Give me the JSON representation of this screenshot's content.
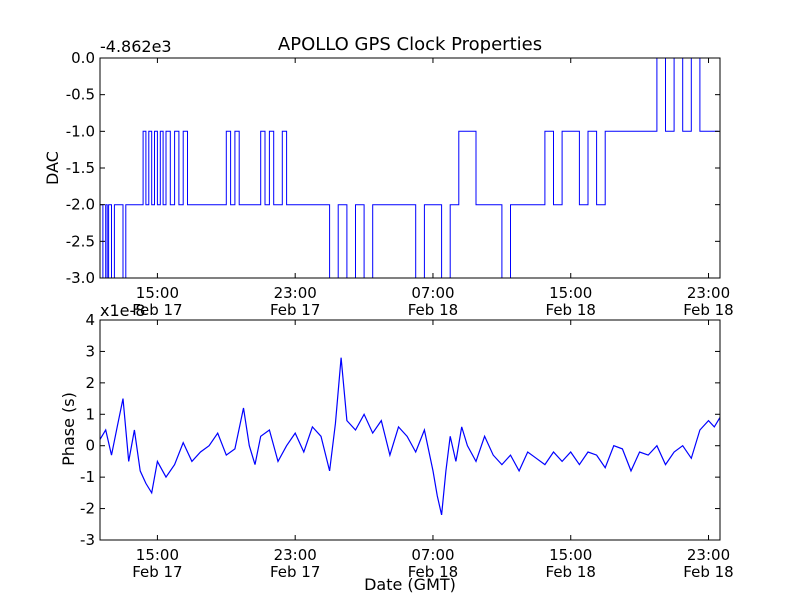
{
  "figure": {
    "title": "APOLLO GPS Clock Properties",
    "xlabel": "Date (GMT)"
  },
  "chart_data": [
    {
      "type": "line",
      "title": "APOLLO GPS Clock Properties",
      "ylabel": "DAC",
      "offset_label": "-4.862e3",
      "xlabel": "",
      "xlim": [
        "2014-02-17T11:40",
        "2014-02-18T23:40"
      ],
      "ylim": [
        -3.0,
        0.0
      ],
      "yticks": [
        {
          "value": 0.0,
          "label": "0.0"
        },
        {
          "value": -0.5,
          "label": "-0.5"
        },
        {
          "value": -1.0,
          "label": "-1.0"
        },
        {
          "value": -1.5,
          "label": "-1.5"
        },
        {
          "value": -2.0,
          "label": "-2.0"
        },
        {
          "value": -2.5,
          "label": "-2.5"
        },
        {
          "value": -3.0,
          "label": "-3.0"
        }
      ],
      "xticks": [
        {
          "value": "2014-02-17T15:00",
          "label": "15:00",
          "date": "Feb 17"
        },
        {
          "value": "2014-02-17T23:00",
          "label": "23:00",
          "date": "Feb 17"
        },
        {
          "value": "2014-02-18T07:00",
          "label": "07:00",
          "date": "Feb 18"
        },
        {
          "value": "2014-02-18T15:00",
          "label": "15:00",
          "date": "Feb 18"
        },
        {
          "value": "2014-02-18T23:00",
          "label": "23:00",
          "date": "Feb 18"
        }
      ],
      "grid": false,
      "colors": {
        "line": "#0000ff"
      },
      "series": [
        {
          "x": [
            "2014-02-17T11:40",
            "2014-02-17T11:50",
            "2014-02-17T12:00",
            "2014-02-17T12:05",
            "2014-02-17T12:10",
            "2014-02-17T12:20",
            "2014-02-17T12:30",
            "2014-02-17T12:40",
            "2014-02-17T12:50",
            "2014-02-17T13:00",
            "2014-02-17T13:10",
            "2014-02-17T13:20",
            "2014-02-17T13:30",
            "2014-02-17T13:45",
            "2014-02-17T14:00",
            "2014-02-17T14:10",
            "2014-02-17T14:20",
            "2014-02-17T14:30",
            "2014-02-17T14:40",
            "2014-02-17T14:50",
            "2014-02-17T15:00",
            "2014-02-17T15:10",
            "2014-02-17T15:20",
            "2014-02-17T15:30",
            "2014-02-17T15:45",
            "2014-02-17T16:00",
            "2014-02-17T16:15",
            "2014-02-17T16:30",
            "2014-02-17T16:45",
            "2014-02-17T17:00",
            "2014-02-17T17:30",
            "2014-02-17T18:00",
            "2014-02-17T18:30",
            "2014-02-17T19:00",
            "2014-02-17T19:15",
            "2014-02-17T19:30",
            "2014-02-17T19:45",
            "2014-02-17T20:00",
            "2014-02-17T20:30",
            "2014-02-17T21:00",
            "2014-02-17T21:15",
            "2014-02-17T21:30",
            "2014-02-17T21:45",
            "2014-02-17T22:00",
            "2014-02-17T22:15",
            "2014-02-17T22:30",
            "2014-02-17T23:00",
            "2014-02-17T23:30",
            "2014-02-18T00:00",
            "2014-02-18T00:30",
            "2014-02-18T01:00",
            "2014-02-18T01:30",
            "2014-02-18T02:00",
            "2014-02-18T02:30",
            "2014-02-18T03:00",
            "2014-02-18T03:30",
            "2014-02-18T04:00",
            "2014-02-18T04:30",
            "2014-02-18T05:00",
            "2014-02-18T05:30",
            "2014-02-18T06:00",
            "2014-02-18T06:30",
            "2014-02-18T07:00",
            "2014-02-18T07:30",
            "2014-02-18T08:00",
            "2014-02-18T08:30",
            "2014-02-18T09:00",
            "2014-02-18T09:30",
            "2014-02-18T10:00",
            "2014-02-18T10:30",
            "2014-02-18T11:00",
            "2014-02-18T11:30",
            "2014-02-18T12:00",
            "2014-02-18T12:30",
            "2014-02-18T13:00",
            "2014-02-18T13:30",
            "2014-02-18T14:00",
            "2014-02-18T14:30",
            "2014-02-18T15:00",
            "2014-02-18T15:30",
            "2014-02-18T16:00",
            "2014-02-18T16:30",
            "2014-02-18T17:00",
            "2014-02-18T17:30",
            "2014-02-18T18:00",
            "2014-02-18T18:30",
            "2014-02-18T19:00",
            "2014-02-18T19:30",
            "2014-02-18T20:00",
            "2014-02-18T20:30",
            "2014-02-18T21:00",
            "2014-02-18T21:30",
            "2014-02-18T22:00",
            "2014-02-18T22:30",
            "2014-02-18T23:00",
            "2014-02-18T23:20",
            "2014-02-18T23:35"
          ],
          "y": [
            -2.0,
            -3.0,
            -2.0,
            -3.0,
            -2.0,
            -3.0,
            -2.0,
            -2.0,
            -2.0,
            -3.0,
            -2.0,
            -2.0,
            -2.0,
            -2.0,
            -2.0,
            -1.0,
            -2.0,
            -1.0,
            -2.0,
            -1.0,
            -2.0,
            -1.0,
            -2.0,
            -1.0,
            -2.0,
            -1.0,
            -2.0,
            -1.0,
            -2.0,
            -2.0,
            -2.0,
            -2.0,
            -2.0,
            -1.0,
            -2.0,
            -1.0,
            -2.0,
            -2.0,
            -2.0,
            -1.0,
            -2.0,
            -1.0,
            -2.0,
            -2.0,
            -1.0,
            -2.0,
            -2.0,
            -2.0,
            -2.0,
            -2.0,
            -3.0,
            -2.0,
            -3.0,
            -2.0,
            -3.0,
            -2.0,
            -2.0,
            -2.0,
            -2.0,
            -2.0,
            -3.0,
            -2.0,
            -2.0,
            -3.0,
            -2.0,
            -1.0,
            -1.0,
            -2.0,
            -2.0,
            -2.0,
            -3.0,
            -2.0,
            -2.0,
            -2.0,
            -2.0,
            -1.0,
            -2.0,
            -1.0,
            -1.0,
            -2.0,
            -1.0,
            -2.0,
            -1.0,
            -1.0,
            -1.0,
            -1.0,
            -1.0,
            -1.0,
            0.0,
            -1.0,
            0.0,
            -1.0,
            0.0,
            -1.0,
            -1.0,
            -1.0,
            -1.0
          ]
        }
      ]
    },
    {
      "type": "line",
      "ylabel": "Phase (s)",
      "offset_label": "x1e-8",
      "xlabel": "Date (GMT)",
      "xlim": [
        "2014-02-17T11:40",
        "2014-02-18T23:40"
      ],
      "ylim": [
        -3,
        4
      ],
      "yticks": [
        {
          "value": 4,
          "label": "4"
        },
        {
          "value": 3,
          "label": "3"
        },
        {
          "value": 2,
          "label": "2"
        },
        {
          "value": 1,
          "label": "1"
        },
        {
          "value": 0,
          "label": "0"
        },
        {
          "value": -1,
          "label": "-1"
        },
        {
          "value": -2,
          "label": "-2"
        },
        {
          "value": -3,
          "label": "-3"
        }
      ],
      "xticks": [
        {
          "value": "2014-02-17T15:00",
          "label": "15:00",
          "date": "Feb 17"
        },
        {
          "value": "2014-02-17T23:00",
          "label": "23:00",
          "date": "Feb 17"
        },
        {
          "value": "2014-02-18T07:00",
          "label": "07:00",
          "date": "Feb 18"
        },
        {
          "value": "2014-02-18T15:00",
          "label": "15:00",
          "date": "Feb 18"
        },
        {
          "value": "2014-02-18T23:00",
          "label": "23:00",
          "date": "Feb 18"
        }
      ],
      "grid": false,
      "colors": {
        "line": "#0000ff"
      },
      "series": [
        {
          "x": [
            "2014-02-17T11:40",
            "2014-02-17T12:00",
            "2014-02-17T12:20",
            "2014-02-17T12:40",
            "2014-02-17T13:00",
            "2014-02-17T13:20",
            "2014-02-17T13:40",
            "2014-02-17T14:00",
            "2014-02-17T14:20",
            "2014-02-17T14:40",
            "2014-02-17T15:00",
            "2014-02-17T15:30",
            "2014-02-17T16:00",
            "2014-02-17T16:30",
            "2014-02-17T17:00",
            "2014-02-17T17:30",
            "2014-02-17T18:00",
            "2014-02-17T18:30",
            "2014-02-17T19:00",
            "2014-02-17T19:30",
            "2014-02-17T20:00",
            "2014-02-17T20:20",
            "2014-02-17T20:40",
            "2014-02-17T21:00",
            "2014-02-17T21:30",
            "2014-02-17T22:00",
            "2014-02-17T22:30",
            "2014-02-17T23:00",
            "2014-02-17T23:30",
            "2014-02-18T00:00",
            "2014-02-18T00:30",
            "2014-02-18T01:00",
            "2014-02-18T01:20",
            "2014-02-18T01:40",
            "2014-02-18T02:00",
            "2014-02-18T02:30",
            "2014-02-18T03:00",
            "2014-02-18T03:30",
            "2014-02-18T04:00",
            "2014-02-18T04:30",
            "2014-02-18T05:00",
            "2014-02-18T05:30",
            "2014-02-18T06:00",
            "2014-02-18T06:30",
            "2014-02-18T07:00",
            "2014-02-18T07:15",
            "2014-02-18T07:30",
            "2014-02-18T07:45",
            "2014-02-18T08:00",
            "2014-02-18T08:20",
            "2014-02-18T08:40",
            "2014-02-18T09:00",
            "2014-02-18T09:30",
            "2014-02-18T10:00",
            "2014-02-18T10:30",
            "2014-02-18T11:00",
            "2014-02-18T11:30",
            "2014-02-18T12:00",
            "2014-02-18T12:30",
            "2014-02-18T13:00",
            "2014-02-18T13:30",
            "2014-02-18T14:00",
            "2014-02-18T14:30",
            "2014-02-18T15:00",
            "2014-02-18T15:30",
            "2014-02-18T16:00",
            "2014-02-18T16:30",
            "2014-02-18T17:00",
            "2014-02-18T17:30",
            "2014-02-18T18:00",
            "2014-02-18T18:30",
            "2014-02-18T19:00",
            "2014-02-18T19:30",
            "2014-02-18T20:00",
            "2014-02-18T20:30",
            "2014-02-18T21:00",
            "2014-02-18T21:30",
            "2014-02-18T22:00",
            "2014-02-18T22:30",
            "2014-02-18T23:00",
            "2014-02-18T23:20",
            "2014-02-18T23:40"
          ],
          "y": [
            0.2,
            0.5,
            -0.3,
            0.6,
            1.5,
            -0.5,
            0.5,
            -0.8,
            -1.2,
            -1.5,
            -0.5,
            -1.0,
            -0.6,
            0.1,
            -0.5,
            -0.2,
            0.0,
            0.4,
            -0.3,
            -0.1,
            1.2,
            0.0,
            -0.6,
            0.3,
            0.5,
            -0.5,
            0.0,
            0.4,
            -0.2,
            0.6,
            0.3,
            -0.8,
            0.7,
            2.8,
            0.8,
            0.5,
            1.0,
            0.4,
            0.8,
            -0.3,
            0.6,
            0.3,
            -0.2,
            0.5,
            -0.8,
            -1.6,
            -2.2,
            -0.8,
            0.3,
            -0.5,
            0.6,
            0.0,
            -0.5,
            0.3,
            -0.3,
            -0.6,
            -0.3,
            -0.8,
            -0.2,
            -0.4,
            -0.6,
            -0.2,
            -0.5,
            -0.2,
            -0.6,
            -0.2,
            -0.3,
            -0.7,
            0.0,
            -0.1,
            -0.8,
            -0.2,
            -0.3,
            0.0,
            -0.6,
            -0.2,
            0.0,
            -0.4,
            0.5,
            0.8,
            0.6,
            0.9
          ]
        }
      ]
    }
  ]
}
